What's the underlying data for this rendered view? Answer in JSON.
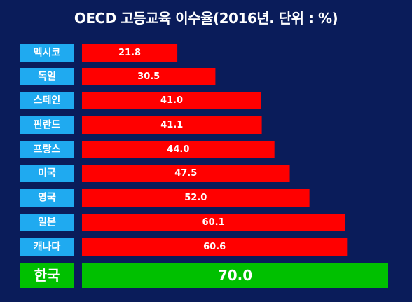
{
  "chart_data": {
    "type": "bar",
    "orientation": "horizontal",
    "title": "OECD 고등교육 이수율(2016년. 단위 : %)",
    "categories": [
      "멕시코",
      "독일",
      "스페인",
      "핀란드",
      "프랑스",
      "미국",
      "영국",
      "일본",
      "캐나다",
      "한국"
    ],
    "values": [
      21.8,
      30.5,
      41.0,
      41.1,
      44.0,
      47.5,
      52.0,
      60.1,
      60.6,
      70.0
    ],
    "value_labels": [
      "21.8",
      "30.5",
      "41.0",
      "41.1",
      "44.0",
      "47.5",
      "52.0",
      "60.1",
      "60.6",
      "70.0"
    ],
    "highlight_category": "한국",
    "xlim": [
      0,
      70
    ],
    "grid": false,
    "legend": "none",
    "colors": {
      "background": "#0a1c5a",
      "bar": "#ff0000",
      "bar_highlight": "#00c000",
      "label_box": "#1faaf0",
      "label_box_highlight": "#00c000",
      "text": "#ffffff"
    }
  }
}
